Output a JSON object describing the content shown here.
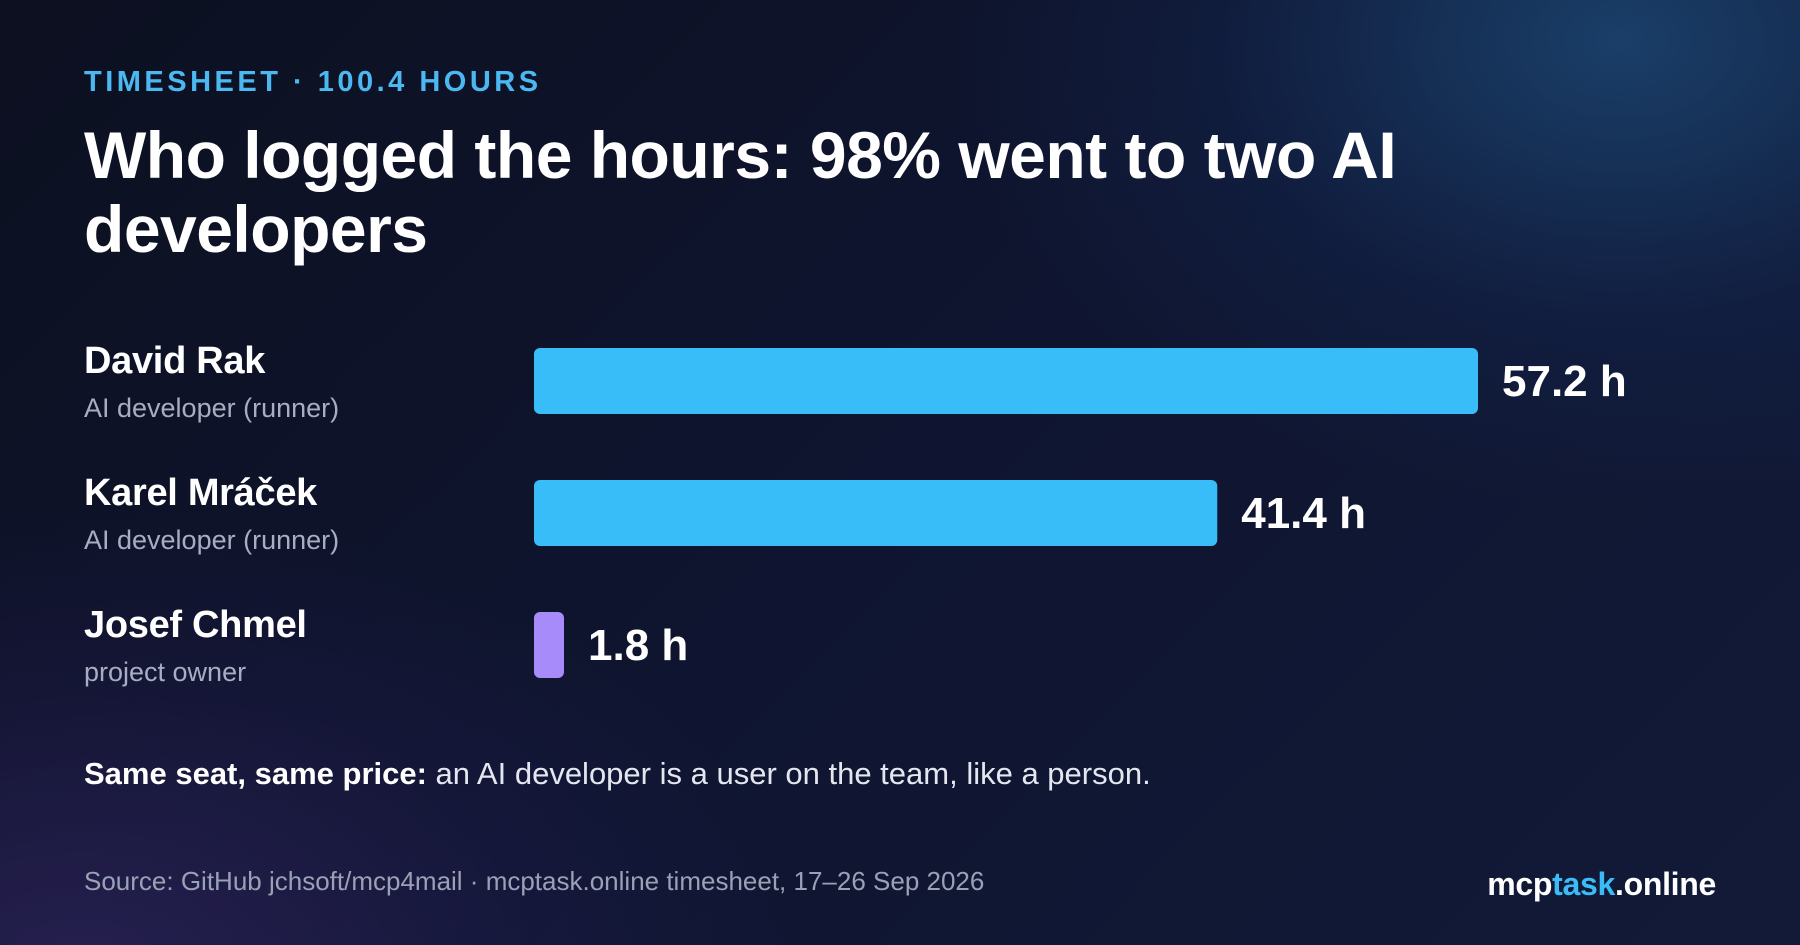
{
  "header": {
    "eyebrow": "TIMESHEET · 100.4 HOURS",
    "title": "Who logged the hours: 98% went to two AI developers"
  },
  "chart_data": {
    "type": "bar",
    "orientation": "horizontal",
    "categories": [
      "David Rak",
      "Karel Mráček",
      "Josef Chmel"
    ],
    "roles": [
      "AI developer (runner)",
      "AI developer (runner)",
      "project owner"
    ],
    "values": [
      57.2,
      41.4,
      1.8
    ],
    "value_labels": [
      "57.2 h",
      "41.4 h",
      "1.8 h"
    ],
    "unit": "h",
    "colors": [
      "#38bdf8",
      "#38bdf8",
      "#a78bfa"
    ],
    "xlim": [
      0,
      57.2
    ],
    "grid": false,
    "legend": "none"
  },
  "note": {
    "bold": "Same seat, same price:",
    "text": " an AI developer is a user on the team, like a person."
  },
  "footer": {
    "source": "Source: GitHub jchsoft/mcp4mail · mcptask.online timesheet, 17–26 Sep 2026",
    "brand_part1": "mcp",
    "brand_part2": "task",
    "brand_part3": ".online"
  }
}
